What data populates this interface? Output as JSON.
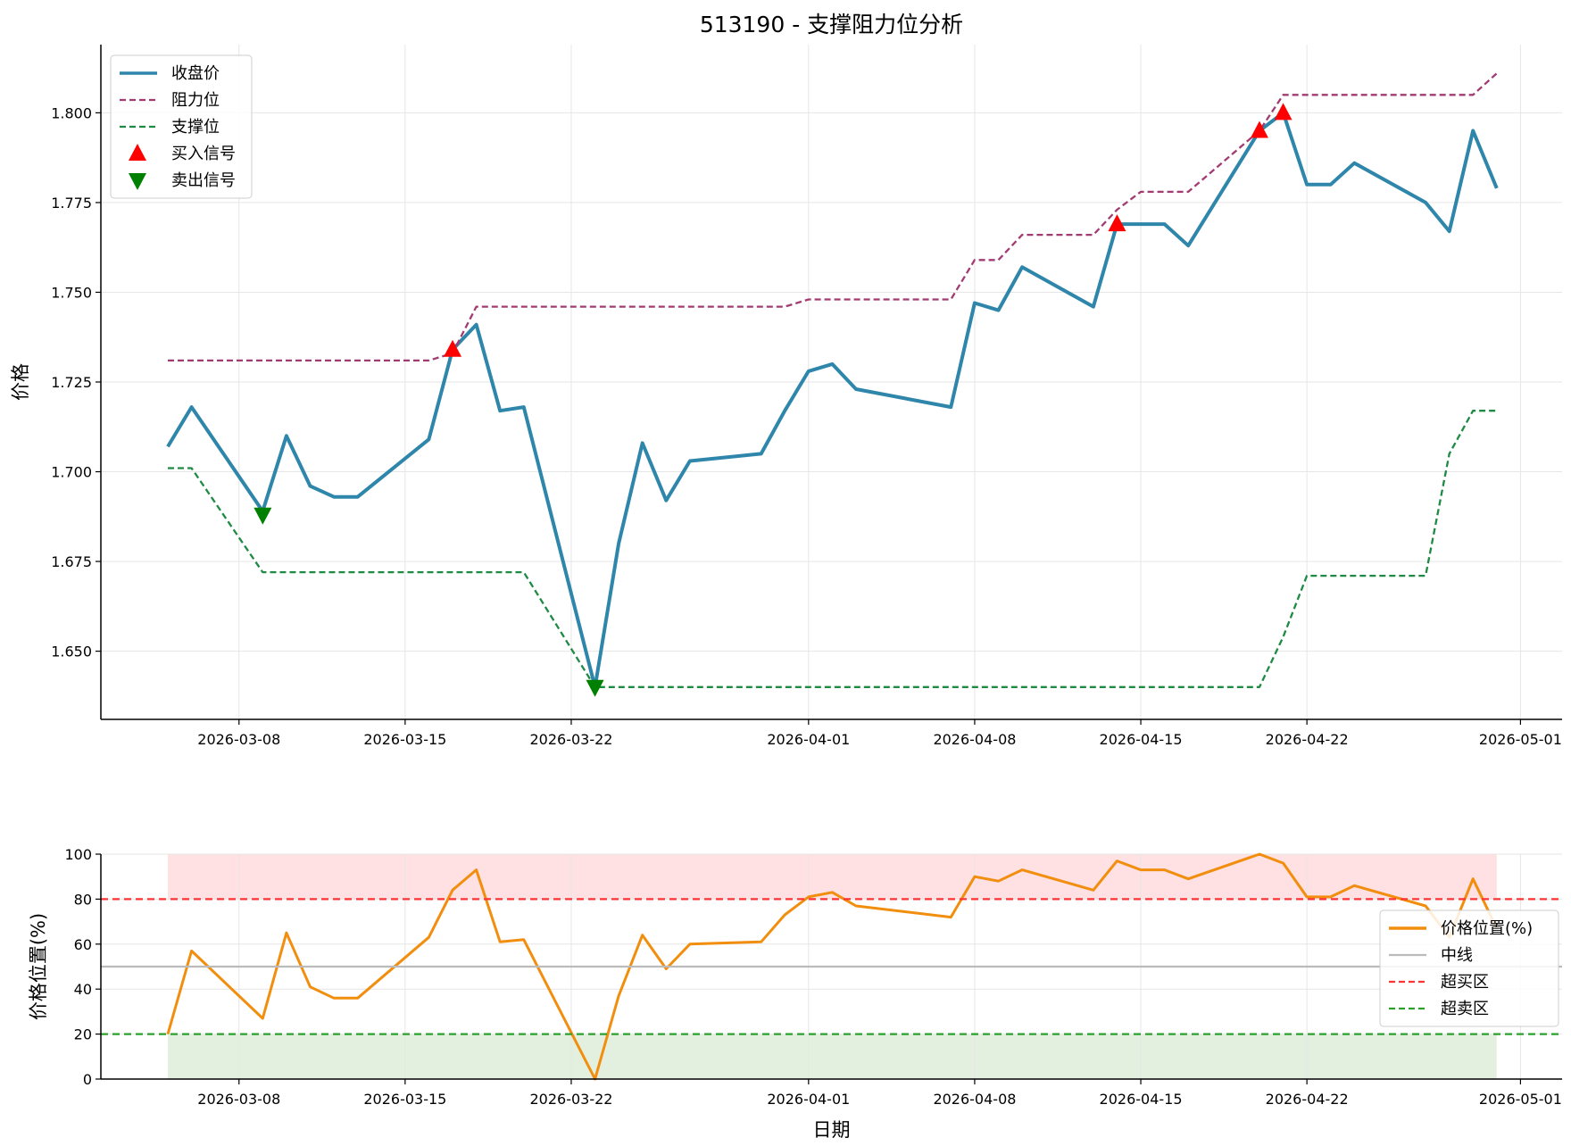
{
  "chart_data": [
    {
      "type": "line",
      "title": "513190 - 支撑阻力位分析",
      "xlabel": "",
      "ylabel": "价格",
      "x_tick_labels": [
        "2026-03-08",
        "2026-03-15",
        "2026-03-22",
        "2026-04-01",
        "2026-04-08",
        "2026-04-15",
        "2026-04-22",
        "2026-05-01"
      ],
      "xlim": [
        "2026-03-05",
        "2026-05-02"
      ],
      "ylim": [
        1.631,
        1.819
      ],
      "y_ticks": [
        1.65,
        1.675,
        1.7,
        1.725,
        1.75,
        1.775,
        1.8
      ],
      "grid": true,
      "legend_position": "upper-left",
      "colors": {
        "close": "#2E86AB",
        "resistance": "#A23B72",
        "support": "#1E8A44",
        "buy": "#FF0000",
        "sell": "#008000"
      },
      "series": [
        {
          "name": "收盘价",
          "style": "solid",
          "points": [
            [
              "2026-03-05",
              1.707
            ],
            [
              "2026-03-06",
              1.718
            ],
            [
              "2026-03-09",
              1.689
            ],
            [
              "2026-03-10",
              1.71
            ],
            [
              "2026-03-11",
              1.696
            ],
            [
              "2026-03-12",
              1.693
            ],
            [
              "2026-03-13",
              1.693
            ],
            [
              "2026-03-16",
              1.709
            ],
            [
              "2026-03-17",
              1.734
            ],
            [
              "2026-03-18",
              1.741
            ],
            [
              "2026-03-19",
              1.717
            ],
            [
              "2026-03-20",
              1.718
            ],
            [
              "2026-03-23",
              1.64
            ],
            [
              "2026-03-24",
              1.68
            ],
            [
              "2026-03-25",
              1.708
            ],
            [
              "2026-03-26",
              1.692
            ],
            [
              "2026-03-27",
              1.703
            ],
            [
              "2026-03-30",
              1.705
            ],
            [
              "2026-03-31",
              1.717
            ],
            [
              "2026-04-01",
              1.728
            ],
            [
              "2026-04-02",
              1.73
            ],
            [
              "2026-04-03",
              1.723
            ],
            [
              "2026-04-07",
              1.718
            ],
            [
              "2026-04-08",
              1.747
            ],
            [
              "2026-04-09",
              1.745
            ],
            [
              "2026-04-10",
              1.757
            ],
            [
              "2026-04-13",
              1.746
            ],
            [
              "2026-04-14",
              1.769
            ],
            [
              "2026-04-15",
              1.769
            ],
            [
              "2026-04-16",
              1.769
            ],
            [
              "2026-04-17",
              1.763
            ],
            [
              "2026-04-20",
              1.795
            ],
            [
              "2026-04-21",
              1.8
            ],
            [
              "2026-04-22",
              1.78
            ],
            [
              "2026-04-23",
              1.78
            ],
            [
              "2026-04-24",
              1.786
            ],
            [
              "2026-04-27",
              1.775
            ],
            [
              "2026-04-28",
              1.767
            ],
            [
              "2026-04-29",
              1.795
            ],
            [
              "2026-04-30",
              1.779
            ]
          ]
        },
        {
          "name": "阻力位",
          "style": "dashed",
          "points": [
            [
              "2026-03-05",
              1.731
            ],
            [
              "2026-03-16",
              1.731
            ],
            [
              "2026-03-17",
              1.733
            ],
            [
              "2026-03-18",
              1.746
            ],
            [
              "2026-03-31",
              1.746
            ],
            [
              "2026-04-01",
              1.748
            ],
            [
              "2026-04-07",
              1.748
            ],
            [
              "2026-04-08",
              1.759
            ],
            [
              "2026-04-09",
              1.759
            ],
            [
              "2026-04-10",
              1.766
            ],
            [
              "2026-04-13",
              1.766
            ],
            [
              "2026-04-14",
              1.773
            ],
            [
              "2026-04-15",
              1.778
            ],
            [
              "2026-04-17",
              1.778
            ],
            [
              "2026-04-20",
              1.795
            ],
            [
              "2026-04-21",
              1.805
            ],
            [
              "2026-04-29",
              1.805
            ],
            [
              "2026-04-30",
              1.811
            ]
          ]
        },
        {
          "name": "支撑位",
          "style": "dashed",
          "points": [
            [
              "2026-03-05",
              1.701
            ],
            [
              "2026-03-06",
              1.701
            ],
            [
              "2026-03-09",
              1.672
            ],
            [
              "2026-03-20",
              1.672
            ],
            [
              "2026-03-23",
              1.64
            ],
            [
              "2026-04-20",
              1.64
            ],
            [
              "2026-04-21",
              1.654
            ],
            [
              "2026-04-22",
              1.671
            ],
            [
              "2026-04-27",
              1.671
            ],
            [
              "2026-04-28",
              1.705
            ],
            [
              "2026-04-29",
              1.717
            ],
            [
              "2026-04-30",
              1.717
            ]
          ]
        },
        {
          "name": "买入信号",
          "style": "marker-up",
          "points": [
            [
              "2026-03-17",
              1.734
            ],
            [
              "2026-04-14",
              1.769
            ],
            [
              "2026-04-20",
              1.795
            ],
            [
              "2026-04-21",
              1.8
            ]
          ]
        },
        {
          "name": "卖出信号",
          "style": "marker-down",
          "points": [
            [
              "2026-03-09",
              1.688
            ],
            [
              "2026-03-23",
              1.64
            ]
          ]
        }
      ]
    },
    {
      "type": "line",
      "title": "",
      "xlabel": "日期",
      "ylabel": "价格位置(%)",
      "x_tick_labels": [
        "2026-03-08",
        "2026-03-15",
        "2026-03-22",
        "2026-04-01",
        "2026-04-08",
        "2026-04-15",
        "2026-04-22",
        "2026-05-01"
      ],
      "xlim": [
        "2026-03-05",
        "2026-05-02"
      ],
      "ylim": [
        0,
        100
      ],
      "y_ticks": [
        0,
        20,
        40,
        60,
        80,
        100
      ],
      "grid": true,
      "legend_position": "right",
      "colors": {
        "position": "#F28E0E",
        "mid": "#BBBBBB",
        "overbought": "#FF3333",
        "oversold": "#2CA02C",
        "overbought_fill": "#FFE0E3",
        "oversold_fill": "#E3F0E0"
      },
      "shaded_bands": [
        {
          "from": 80,
          "to": 100,
          "name": "overbought"
        },
        {
          "from": 0,
          "to": 20,
          "name": "oversold"
        }
      ],
      "series": [
        {
          "name": "价格位置(%)",
          "style": "solid",
          "points": [
            [
              "2026-03-05",
              20
            ],
            [
              "2026-03-06",
              57
            ],
            [
              "2026-03-09",
              27
            ],
            [
              "2026-03-10",
              65
            ],
            [
              "2026-03-11",
              41
            ],
            [
              "2026-03-12",
              36
            ],
            [
              "2026-03-13",
              36
            ],
            [
              "2026-03-16",
              63
            ],
            [
              "2026-03-17",
              84
            ],
            [
              "2026-03-18",
              93
            ],
            [
              "2026-03-19",
              61
            ],
            [
              "2026-03-20",
              62
            ],
            [
              "2026-03-23",
              0
            ],
            [
              "2026-03-24",
              37
            ],
            [
              "2026-03-25",
              64
            ],
            [
              "2026-03-26",
              49
            ],
            [
              "2026-03-27",
              60
            ],
            [
              "2026-03-30",
              61
            ],
            [
              "2026-03-31",
              73
            ],
            [
              "2026-04-01",
              81
            ],
            [
              "2026-04-02",
              83
            ],
            [
              "2026-04-03",
              77
            ],
            [
              "2026-04-07",
              72
            ],
            [
              "2026-04-08",
              90
            ],
            [
              "2026-04-09",
              88
            ],
            [
              "2026-04-10",
              93
            ],
            [
              "2026-04-13",
              84
            ],
            [
              "2026-04-14",
              97
            ],
            [
              "2026-04-15",
              93
            ],
            [
              "2026-04-16",
              93
            ],
            [
              "2026-04-17",
              89
            ],
            [
              "2026-04-20",
              100
            ],
            [
              "2026-04-21",
              96
            ],
            [
              "2026-04-22",
              81
            ],
            [
              "2026-04-23",
              81
            ],
            [
              "2026-04-24",
              86
            ],
            [
              "2026-04-27",
              77
            ],
            [
              "2026-04-28",
              63
            ],
            [
              "2026-04-29",
              89
            ],
            [
              "2026-04-30",
              67
            ]
          ]
        },
        {
          "name": "中线",
          "style": "hline",
          "value": 50
        },
        {
          "name": "超买区",
          "style": "hline-dashed",
          "value": 80
        },
        {
          "name": "超卖区",
          "style": "hline-dashed",
          "value": 20
        }
      ]
    }
  ]
}
